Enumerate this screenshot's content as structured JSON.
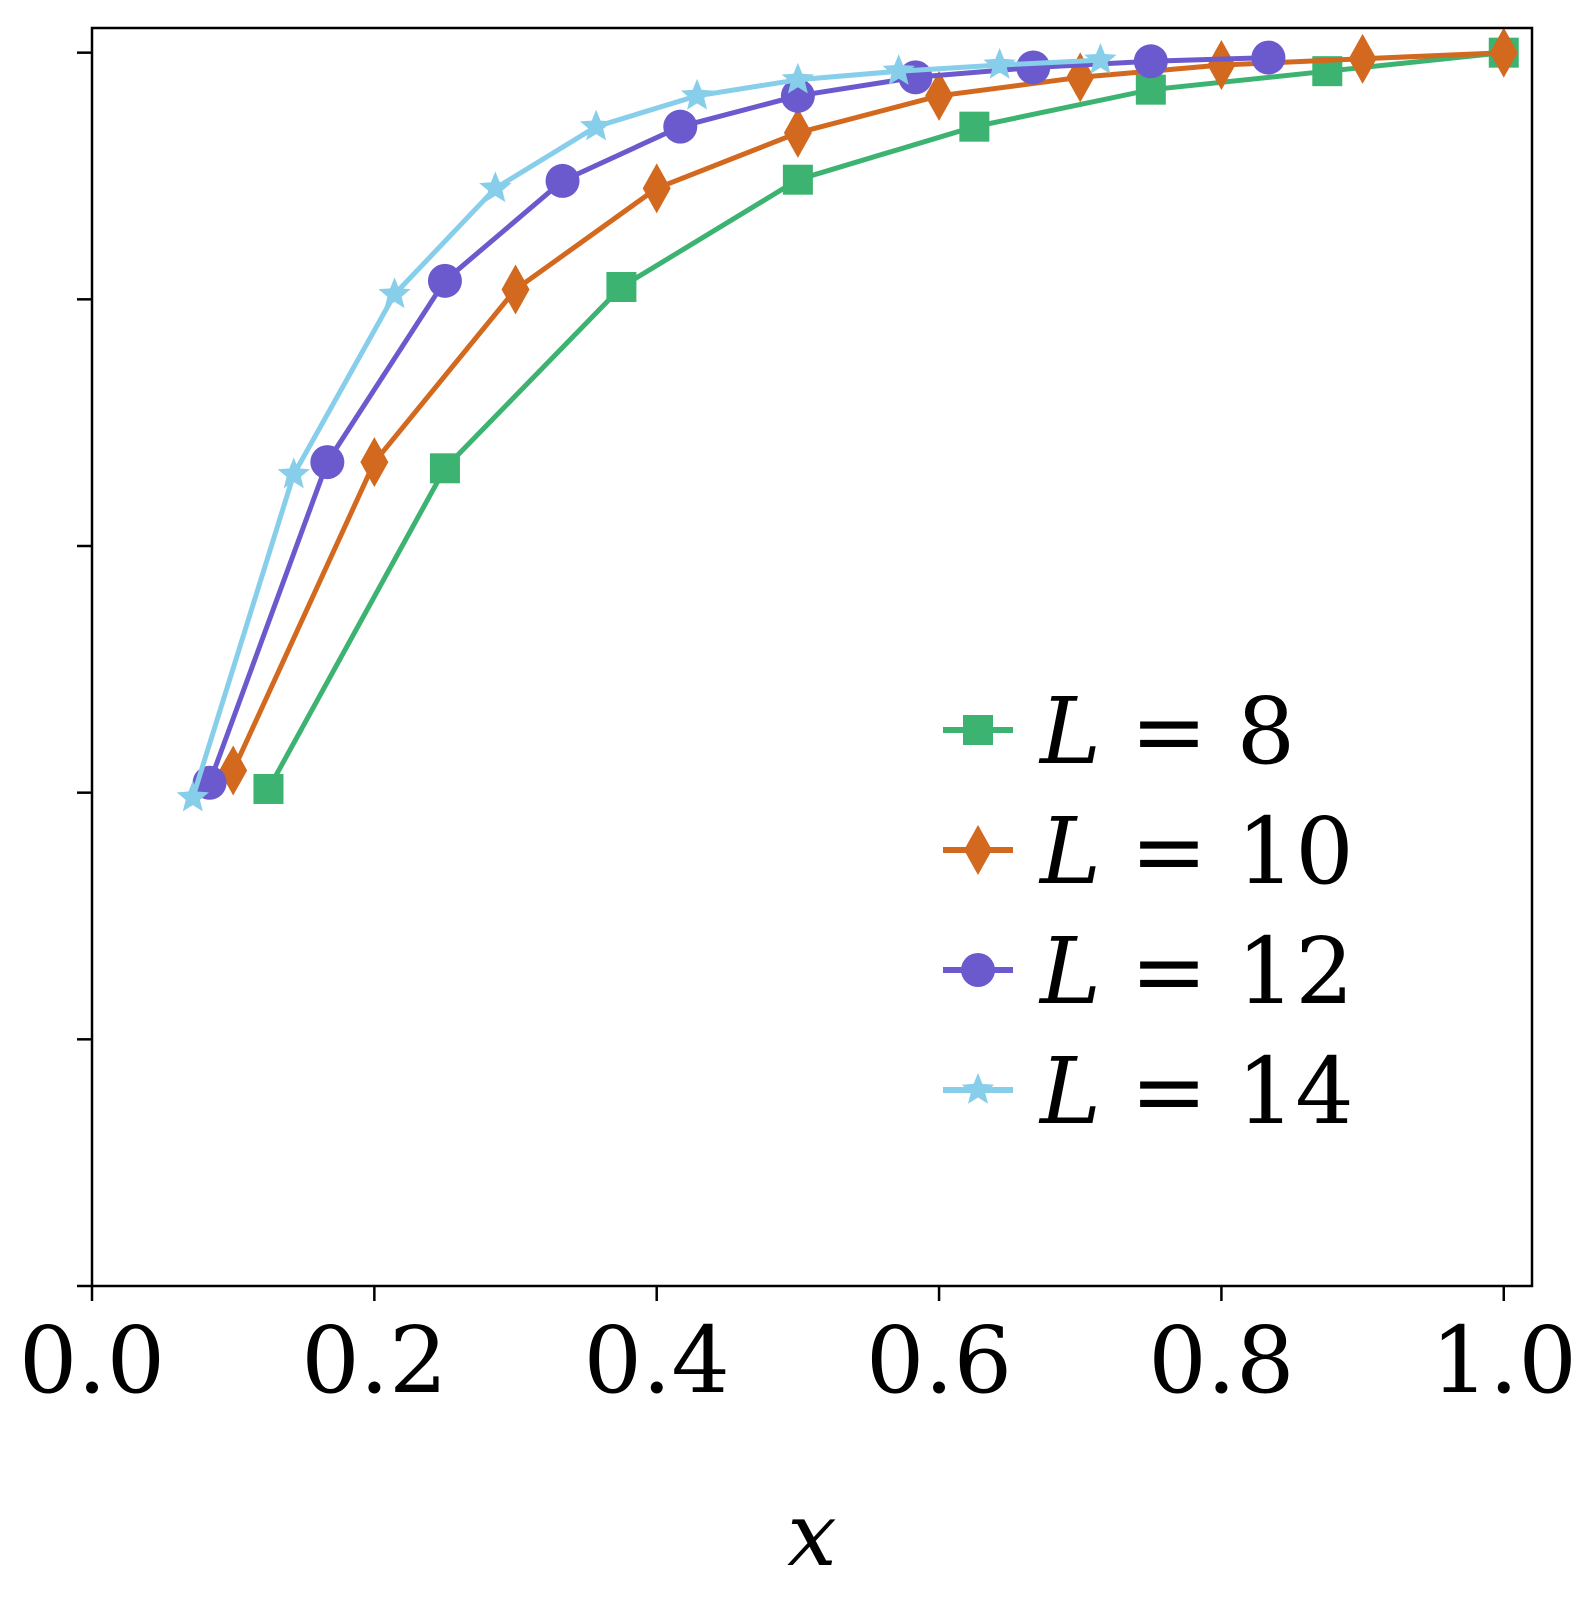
{
  "chart_data": {
    "type": "line",
    "xlabel": "x",
    "ylabel": "",
    "xlim": [
      0.0,
      1.02
    ],
    "ylim": [
      0.0,
      1.02
    ],
    "xticks": [
      0.0,
      0.2,
      0.4,
      0.6,
      0.8,
      1.0
    ],
    "xtick_labels": [
      "0.0",
      "0.2",
      "0.4",
      "0.6",
      "0.8",
      "1.0"
    ],
    "yticks": [
      0.0,
      0.2,
      0.4,
      0.6,
      0.8,
      1.0
    ],
    "ytick_labels": [
      "",
      "",
      "",
      "",
      "",
      ""
    ],
    "grid": false,
    "legend_position": "lower-right",
    "series": [
      {
        "name": "L = 8",
        "legend": {
          "italic": "L",
          "rest": " = 8"
        },
        "color": "#3cb371",
        "marker": "square",
        "x": [
          0.125,
          0.25,
          0.375,
          0.5,
          0.625,
          0.75,
          0.875,
          1.0
        ],
        "y": [
          0.403,
          0.663,
          0.81,
          0.897,
          0.94,
          0.97,
          0.985,
          1.0
        ]
      },
      {
        "name": "L = 10",
        "legend": {
          "italic": "L",
          "rest": " = 10"
        },
        "color": "#d2691e",
        "marker": "diamond",
        "x": [
          0.1,
          0.2,
          0.3,
          0.4,
          0.5,
          0.6,
          0.7,
          0.8,
          0.9,
          1.0
        ],
        "y": [
          0.418,
          0.668,
          0.808,
          0.89,
          0.935,
          0.965,
          0.98,
          0.99,
          0.995,
          1.0
        ]
      },
      {
        "name": "L = 12",
        "legend": {
          "italic": "L",
          "rest": " = 12"
        },
        "color": "#6a5acd",
        "marker": "circle",
        "x": [
          0.0833,
          0.1667,
          0.25,
          0.3333,
          0.4167,
          0.5,
          0.5833,
          0.6667,
          0.75,
          0.8333
        ],
        "y": [
          0.408,
          0.668,
          0.815,
          0.896,
          0.94,
          0.965,
          0.98,
          0.988,
          0.993,
          0.996
        ]
      },
      {
        "name": "L = 14",
        "legend": {
          "italic": "L",
          "rest": " = 14"
        },
        "color": "#87ceeb",
        "marker": "star",
        "x": [
          0.0714,
          0.1429,
          0.2143,
          0.2857,
          0.3571,
          0.4286,
          0.5,
          0.5714,
          0.6429,
          0.7143
        ],
        "y": [
          0.396,
          0.658,
          0.804,
          0.89,
          0.94,
          0.965,
          0.978,
          0.985,
          0.99,
          0.994
        ]
      }
    ]
  }
}
